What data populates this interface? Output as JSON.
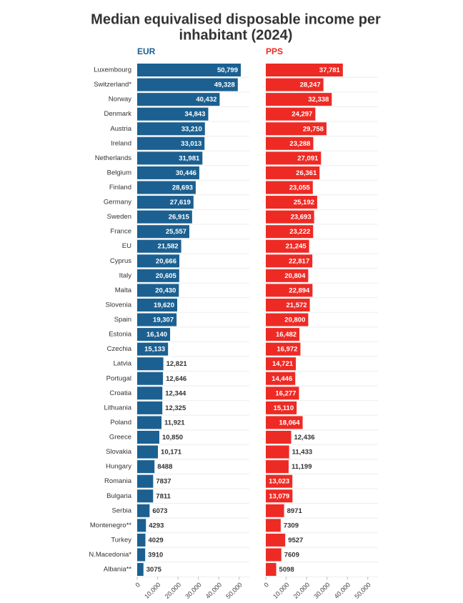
{
  "chart_data": {
    "type": "bar",
    "orientation": "horizontal",
    "title": [
      "Median equivalised disposable income per",
      "inhabitant (2024)"
    ],
    "categories": [
      "Luxembourg",
      "Switzerland*",
      "Norway",
      "Denmark",
      "Austria",
      "Ireland",
      "Netherlands",
      "Belgium",
      "Finland",
      "Germany",
      "Sweden",
      "France",
      "EU",
      "Cyprus",
      "Italy",
      "Malta",
      "Slovenia",
      "Spain",
      "Estonia",
      "Czechia",
      "Latvia",
      "Portugal",
      "Croatia",
      "Lithuania",
      "Poland",
      "Greece",
      "Slovakia",
      "Hungary",
      "Romania",
      "Bulgaria",
      "Serbia",
      "Montenegro**",
      "Turkey",
      "N.Macedonia*",
      "Albania**"
    ],
    "series": [
      {
        "name": "EUR",
        "color": "#1b6091",
        "values": [
          50799,
          49328,
          40432,
          34843,
          33210,
          33013,
          31981,
          30446,
          28693,
          27619,
          26915,
          25557,
          21582,
          20666,
          20605,
          20430,
          19620,
          19307,
          16140,
          15133,
          12821,
          12646,
          12344,
          12325,
          11921,
          10850,
          10171,
          8488,
          7837,
          7811,
          6073,
          4293,
          4029,
          3910,
          3075
        ],
        "value_labels": [
          "50,799",
          "49,328",
          "40,432",
          "34,843",
          "33,210",
          "33,013",
          "31,981",
          "30,446",
          "28,693",
          "27,619",
          "26,915",
          "25,557",
          "21,582",
          "20,666",
          "20,605",
          "20,430",
          "19,620",
          "19,307",
          "16,140",
          "15,133",
          "12,821",
          "12,646",
          "12,344",
          "12,325",
          "11,921",
          "10,850",
          "10,171",
          "8488",
          "7837",
          "7811",
          "6073",
          "4293",
          "4029",
          "3910",
          "3075"
        ]
      },
      {
        "name": "PPS",
        "color": "#ee2a24",
        "values": [
          37781,
          28247,
          32338,
          24297,
          29758,
          23288,
          27091,
          26361,
          23055,
          25192,
          23693,
          23222,
          21245,
          22817,
          20804,
          22894,
          21572,
          20800,
          16482,
          16972,
          14721,
          14446,
          16277,
          15110,
          18064,
          12436,
          11433,
          11199,
          13023,
          13079,
          8971,
          7309,
          9527,
          7609,
          5098
        ],
        "value_labels": [
          "37,781",
          "28,247",
          "32,338",
          "24,297",
          "29,758",
          "23,288",
          "27,091",
          "26,361",
          "23,055",
          "25,192",
          "23,693",
          "23,222",
          "21,245",
          "22,817",
          "20,804",
          "22,894",
          "21,572",
          "20,800",
          "16,482",
          "16,972",
          "14,721",
          "14,446",
          "16,277",
          "15,110",
          "18,064",
          "12,436",
          "11,433",
          "11,199",
          "13,023",
          "13,079",
          "8971",
          "7309",
          "9527",
          "7609",
          "5098"
        ]
      }
    ],
    "xlim": [
      0,
      55000
    ],
    "xticks": [
      0,
      {
        "value": 10000,
        "label": "10,000"
      },
      {
        "value": 20000,
        "label": "20,000"
      },
      {
        "value": 30000,
        "label": "30,000"
      },
      {
        "value": 40000,
        "label": "40,000"
      },
      {
        "value": 50000,
        "label": "50,000"
      }
    ]
  }
}
